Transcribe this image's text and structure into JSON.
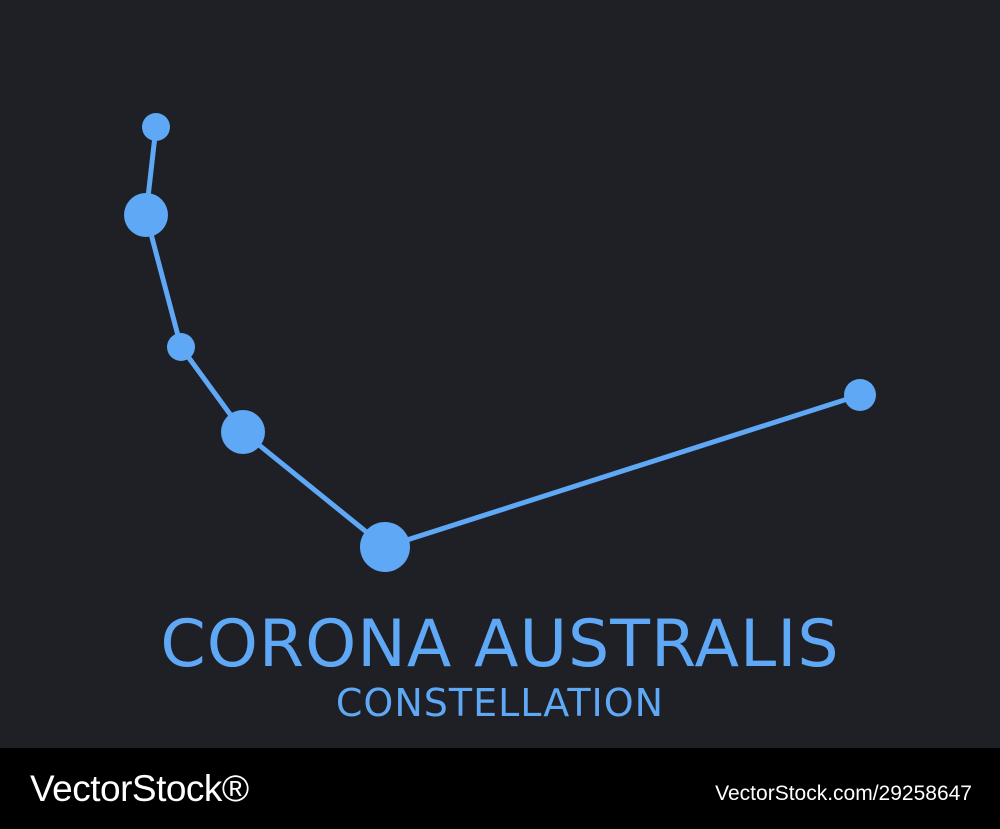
{
  "title": "CORONA AUSTRALIS",
  "subtitle": "CONSTELLATION",
  "watermark": {
    "logo": "VectorStock®",
    "image_id": "VectorStock.com/29258647"
  },
  "colors": {
    "background": "#1f1f26",
    "accent": "#5ea8f6",
    "footer": "#000000"
  }
}
